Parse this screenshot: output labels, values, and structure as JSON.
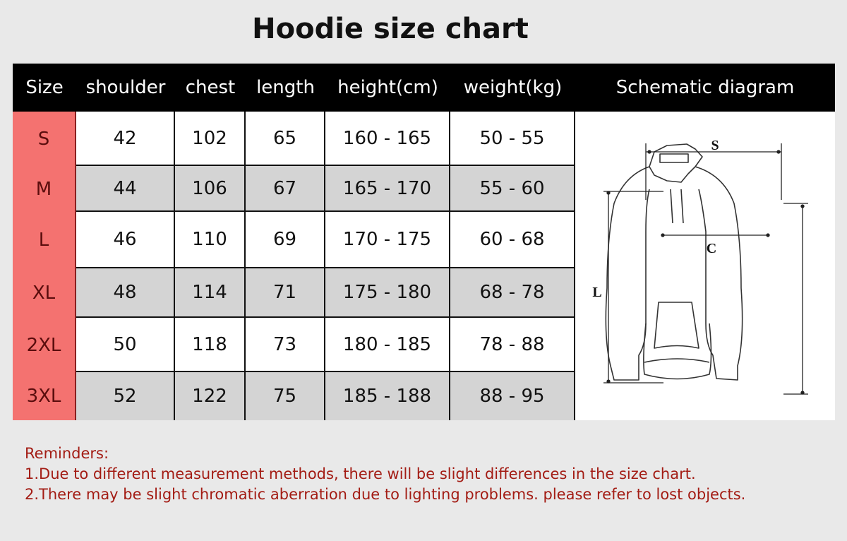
{
  "title": "Hoodie size chart",
  "columns": [
    "Size",
    "shoulder",
    "chest",
    "length",
    "height(cm)",
    "weight(kg)",
    "Schematic diagram"
  ],
  "rows": [
    [
      "S",
      "42",
      "102",
      "65",
      "160 - 165",
      "50 - 55"
    ],
    [
      "M",
      "44",
      "106",
      "67",
      "165 - 170",
      "55 - 60"
    ],
    [
      "L",
      "46",
      "110",
      "69",
      "170 - 175",
      "60 - 68"
    ],
    [
      "XL",
      "48",
      "114",
      "71",
      "175 - 180",
      "68 - 78"
    ],
    [
      "2XL",
      "50",
      "118",
      "73",
      "180 - 185",
      "78 - 88"
    ],
    [
      "3XL",
      "52",
      "122",
      "75",
      "185 - 188",
      "88 - 95"
    ]
  ],
  "diagram": {
    "shoulder_label": "S",
    "chest_label": "C",
    "length_label": "L"
  },
  "reminders": {
    "heading": "Reminders:",
    "items": [
      "1.Due to different measurement methods, there will be slight differences in the size chart.",
      "2.There may be slight chromatic aberration due to lighting problems. please refer to lost objects."
    ]
  },
  "colors": {
    "header_bg": "#000000",
    "size_col": "#f47270",
    "alt_row": "#d4d4d4",
    "reminder_text": "#a31c14"
  }
}
